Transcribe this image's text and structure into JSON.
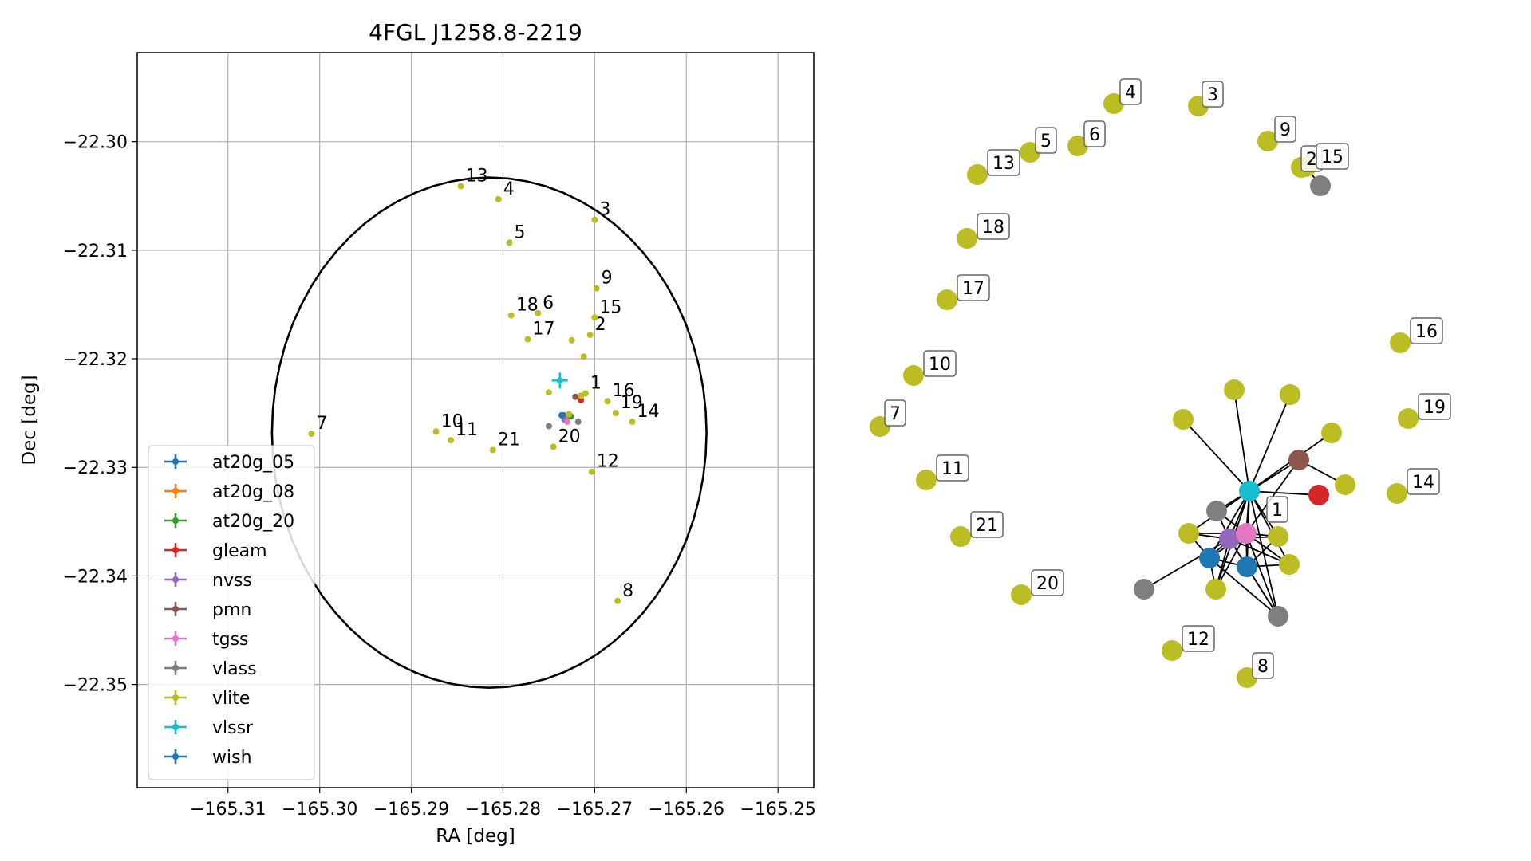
{
  "chart_data": [
    {
      "type": "scatter",
      "title": "4FGL J1258.8-2219",
      "xlabel": "RA [deg]",
      "ylabel": "Dec [deg]",
      "xlim": [
        -165.3199,
        -165.2461
      ],
      "ylim": [
        -22.3595,
        -22.2918
      ],
      "xticks": [
        -165.31,
        -165.3,
        -165.29,
        -165.28,
        -165.27,
        -165.26,
        -165.25
      ],
      "xtick_labels": [
        "−165.31",
        "−165.30",
        "−165.29",
        "−165.28",
        "−165.27",
        "−165.26",
        "−165.25"
      ],
      "yticks": [
        -22.3,
        -22.31,
        -22.32,
        -22.33,
        -22.34,
        -22.35
      ],
      "ytick_labels": [
        "−22.30",
        "−22.31",
        "−22.32",
        "−22.33",
        "−22.34",
        "−22.35"
      ],
      "grid": true,
      "legend_position": "lower-left",
      "ellipse": {
        "center": [
          -165.2815,
          -22.3268
        ],
        "semi_axis_ra": 0.0237,
        "semi_axis_dec": 0.0235,
        "color": "#000000"
      },
      "series": [
        {
          "name": "at20g_05",
          "color": "#1f77b4",
          "points": [
            {
              "x": -165.2734,
              "y": -22.3252
            }
          ]
        },
        {
          "name": "at20g_08",
          "color": "#ff7f0e",
          "points": [
            {
              "x": -165.2728,
              "y": -22.3253
            }
          ]
        },
        {
          "name": "at20g_20",
          "color": "#2ca02c",
          "points": [
            {
              "x": -165.2726,
              "y": -22.3253
            }
          ]
        },
        {
          "name": "gleam",
          "color": "#d62728",
          "points": [
            {
              "x": -165.2715,
              "y": -22.3238
            }
          ]
        },
        {
          "name": "nvss",
          "color": "#9467bd",
          "points": [
            {
              "x": -165.2733,
              "y": -22.3256
            }
          ]
        },
        {
          "name": "pmn",
          "color": "#8c564b",
          "points": [
            {
              "x": -165.2721,
              "y": -22.3235
            }
          ]
        },
        {
          "name": "tgss",
          "color": "#e377c2",
          "points": [
            {
              "x": -165.273,
              "y": -22.3258
            }
          ]
        },
        {
          "name": "vlass",
          "color": "#7f7f7f",
          "points": [
            {
              "x": -165.2718,
              "y": -22.3258
            },
            {
              "x": -165.275,
              "y": -22.3262
            }
          ]
        },
        {
          "name": "vlite",
          "color": "#bcbd22",
          "points": [
            {
              "x": -165.271,
              "y": -22.3232,
              "label": "1"
            },
            {
              "x": -165.2705,
              "y": -22.3178,
              "label": "2"
            },
            {
              "x": -165.27,
              "y": -22.3072,
              "label": "3"
            },
            {
              "x": -165.2805,
              "y": -22.3053,
              "label": "4"
            },
            {
              "x": -165.2793,
              "y": -22.3093,
              "label": "5"
            },
            {
              "x": -165.2762,
              "y": -22.3158,
              "label": "6"
            },
            {
              "x": -165.3009,
              "y": -22.3269,
              "label": "7"
            },
            {
              "x": -165.2675,
              "y": -22.3423,
              "label": "8"
            },
            {
              "x": -165.2698,
              "y": -22.3135,
              "label": "9"
            },
            {
              "x": -165.2873,
              "y": -22.3267,
              "label": "10"
            },
            {
              "x": -165.2857,
              "y": -22.3275,
              "label": "11"
            },
            {
              "x": -165.2703,
              "y": -22.3304,
              "label": "12"
            },
            {
              "x": -165.2846,
              "y": -22.3041,
              "label": "13"
            },
            {
              "x": -165.2659,
              "y": -22.3258,
              "label": "14"
            },
            {
              "x": -165.27,
              "y": -22.3162,
              "label": "15"
            },
            {
              "x": -165.2686,
              "y": -22.3239,
              "label": "16"
            },
            {
              "x": -165.2773,
              "y": -22.3182,
              "label": "17"
            },
            {
              "x": -165.2791,
              "y": -22.316,
              "label": "18"
            },
            {
              "x": -165.2677,
              "y": -22.325,
              "label": "19"
            },
            {
              "x": -165.2745,
              "y": -22.3281,
              "label": "20"
            },
            {
              "x": -165.2811,
              "y": -22.3284,
              "label": "21"
            },
            {
              "x": -165.2725,
              "y": -22.3183
            },
            {
              "x": -165.2712,
              "y": -22.3198
            },
            {
              "x": -165.275,
              "y": -22.3231
            },
            {
              "x": -165.2728,
              "y": -22.3251
            },
            {
              "x": -165.2715,
              "y": -22.3234
            }
          ]
        },
        {
          "name": "vlssr",
          "color": "#17becf",
          "points": [
            {
              "x": -165.2738,
              "y": -22.322
            }
          ]
        },
        {
          "name": "wish",
          "color": "#1f77b4",
          "points": [
            {
              "x": -165.2736,
              "y": -22.3252
            }
          ]
        }
      ]
    },
    {
      "type": "network",
      "nodes": [
        {
          "id": "v1",
          "color": "#bcbd22",
          "label": ""
        },
        {
          "id": "v2",
          "color": "#bcbd22",
          "label": ""
        },
        {
          "id": "v3",
          "color": "#bcbd22",
          "label": ""
        },
        {
          "id": "v4",
          "color": "#bcbd22",
          "label": ""
        },
        {
          "id": "v5",
          "color": "#bcbd22",
          "label": ""
        },
        {
          "id": "v6",
          "color": "#bcbd22",
          "label": ""
        },
        {
          "id": "v7",
          "color": "#bcbd22",
          "label": ""
        },
        {
          "id": "v8",
          "color": "#bcbd22",
          "label": ""
        },
        {
          "id": "v9",
          "color": "#bcbd22",
          "label": ""
        },
        {
          "id": "vlssr",
          "color": "#17becf",
          "label": "1"
        },
        {
          "id": "pmn",
          "color": "#8c564b",
          "label": ""
        },
        {
          "id": "gleam",
          "color": "#d62728",
          "label": ""
        },
        {
          "id": "vlass1",
          "color": "#7f7f7f",
          "label": ""
        },
        {
          "id": "nvss",
          "color": "#9467bd",
          "label": ""
        },
        {
          "id": "tgss",
          "color": "#e377c2",
          "label": ""
        },
        {
          "id": "at1",
          "color": "#1f77b4",
          "label": ""
        },
        {
          "id": "at2",
          "color": "#1f77b4",
          "label": ""
        },
        {
          "id": "vlass2",
          "color": "#7f7f7f",
          "label": ""
        },
        {
          "id": "vlass3",
          "color": "#7f7f7f",
          "label": ""
        },
        {
          "id": "n2",
          "color": "#bcbd22",
          "label": "2"
        },
        {
          "id": "n2v",
          "color": "#7f7f7f",
          "label": ""
        },
        {
          "id": "n3",
          "color": "#bcbd22",
          "label": "3"
        },
        {
          "id": "n4",
          "color": "#bcbd22",
          "label": "4"
        },
        {
          "id": "n5",
          "color": "#bcbd22",
          "label": "5"
        },
        {
          "id": "n6",
          "color": "#bcbd22",
          "label": "6"
        },
        {
          "id": "n7",
          "color": "#bcbd22",
          "label": "7"
        },
        {
          "id": "n8",
          "color": "#bcbd22",
          "label": "8"
        },
        {
          "id": "n9",
          "color": "#bcbd22",
          "label": "9"
        },
        {
          "id": "n10",
          "color": "#bcbd22",
          "label": "10"
        },
        {
          "id": "n11",
          "color": "#bcbd22",
          "label": "11"
        },
        {
          "id": "n12",
          "color": "#bcbd22",
          "label": "12"
        },
        {
          "id": "n13",
          "color": "#bcbd22",
          "label": "13"
        },
        {
          "id": "n14",
          "color": "#bcbd22",
          "label": "14"
        },
        {
          "id": "n15",
          "color": "#bcbd22",
          "label": "15"
        },
        {
          "id": "n16",
          "color": "#bcbd22",
          "label": "16"
        },
        {
          "id": "n17",
          "color": "#bcbd22",
          "label": "17"
        },
        {
          "id": "n18",
          "color": "#bcbd22",
          "label": "18"
        },
        {
          "id": "n19",
          "color": "#bcbd22",
          "label": "19"
        },
        {
          "id": "n20",
          "color": "#bcbd22",
          "label": "20"
        },
        {
          "id": "n21",
          "color": "#bcbd22",
          "label": "21"
        }
      ],
      "edges": [
        [
          "vlssr",
          "v1"
        ],
        [
          "vlssr",
          "v2"
        ],
        [
          "vlssr",
          "v3"
        ],
        [
          "vlssr",
          "v4"
        ],
        [
          "vlssr",
          "pmn"
        ],
        [
          "vlssr",
          "gleam"
        ],
        [
          "vlssr",
          "vlass1"
        ],
        [
          "vlssr",
          "nvss"
        ],
        [
          "vlssr",
          "tgss"
        ],
        [
          "vlssr",
          "at1"
        ],
        [
          "vlssr",
          "at2"
        ],
        [
          "vlssr",
          "v5"
        ],
        [
          "vlssr",
          "v6"
        ],
        [
          "vlssr",
          "v7"
        ],
        [
          "vlssr",
          "v8"
        ],
        [
          "vlssr",
          "vlass3"
        ],
        [
          "nvss",
          "tgss"
        ],
        [
          "nvss",
          "at1"
        ],
        [
          "nvss",
          "at2"
        ],
        [
          "nvss",
          "vlass2"
        ],
        [
          "nvss",
          "v5"
        ],
        [
          "nvss",
          "v6"
        ],
        [
          "nvss",
          "v7"
        ],
        [
          "nvss",
          "v8"
        ],
        [
          "nvss",
          "vlass3"
        ],
        [
          "nvss",
          "vlass1"
        ],
        [
          "tgss",
          "at1"
        ],
        [
          "tgss",
          "at2"
        ],
        [
          "tgss",
          "v5"
        ],
        [
          "tgss",
          "v6"
        ],
        [
          "tgss",
          "v7"
        ],
        [
          "tgss",
          "v8"
        ],
        [
          "tgss",
          "vlass3"
        ],
        [
          "tgss",
          "vlass1"
        ],
        [
          "at1",
          "at2"
        ],
        [
          "at1",
          "v5"
        ],
        [
          "at1",
          "v7"
        ],
        [
          "at2",
          "v6"
        ],
        [
          "at2",
          "v8"
        ],
        [
          "at2",
          "vlass3"
        ],
        [
          "at1",
          "vlass3"
        ],
        [
          "pmn",
          "v9"
        ],
        [
          "pmn",
          "tgss"
        ],
        [
          "n2",
          "n2v"
        ]
      ]
    }
  ]
}
